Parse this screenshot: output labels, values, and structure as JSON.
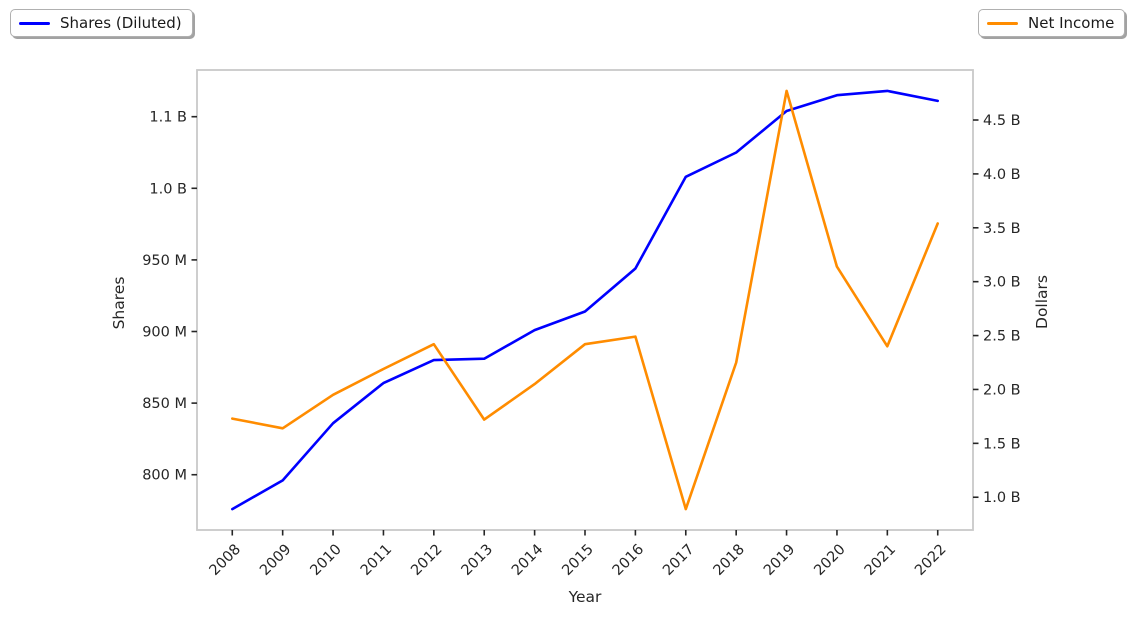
{
  "chart_data": {
    "type": "line",
    "title": "",
    "xlabel": "Year",
    "ylabel_left": "Shares",
    "ylabel_right": "Dollars",
    "x": [
      2008,
      2009,
      2010,
      2011,
      2012,
      2013,
      2014,
      2015,
      2016,
      2017,
      2018,
      2019,
      2020,
      2021,
      2022
    ],
    "series": [
      {
        "name": "Shares (Diluted)",
        "axis": "left",
        "color": "#0000ff",
        "units": "shares",
        "values_millions": [
          776,
          796,
          836,
          864,
          880,
          881,
          901,
          914,
          944,
          1008,
          1025,
          1054,
          1065,
          1068,
          1061
        ]
      },
      {
        "name": "Net Income",
        "axis": "right",
        "color": "#ff8c00",
        "units": "dollars",
        "values_billions": [
          1.73,
          1.64,
          1.95,
          2.19,
          2.42,
          1.72,
          2.05,
          2.42,
          2.49,
          0.89,
          2.25,
          4.77,
          3.14,
          2.4,
          3.54
        ]
      }
    ],
    "yticks_left": {
      "values_millions": [
        800,
        850,
        900,
        950,
        1000,
        1050
      ],
      "labels": [
        "800 M",
        "850 M",
        "900 M",
        "950 M",
        "1.0 B",
        "1.1 B"
      ]
    },
    "yticks_right": {
      "values_billions": [
        1.0,
        1.5,
        2.0,
        2.5,
        3.0,
        3.5,
        4.0,
        4.5
      ],
      "labels": [
        "1.0 B",
        "1.5 B",
        "2.0 B",
        "2.5 B",
        "3.0 B",
        "3.5 B",
        "4.0 B",
        "4.5 B"
      ]
    },
    "ylim_left_millions": [
      761.4,
      1082.6
    ],
    "ylim_right_billions": [
      0.696,
      4.964
    ],
    "xlim_index": [
      -0.7,
      14.7
    ],
    "x_tick_rotation_deg": 45,
    "grid": "off",
    "legend_position": "outside-top-left and outside-top-right",
    "spine_color": "#c9c9c9",
    "tick_color": "#262626",
    "text_color": "#262626"
  }
}
